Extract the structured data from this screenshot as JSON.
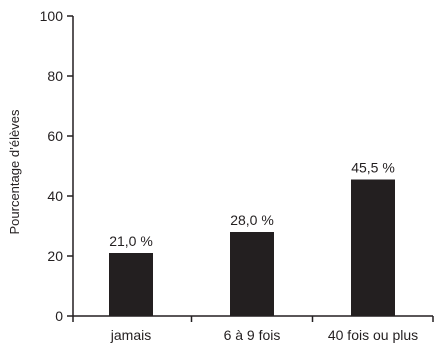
{
  "chart_data": {
    "type": "bar",
    "categories": [
      "jamais",
      "6 à 9 fois",
      "40 fois ou plus"
    ],
    "values": [
      21.0,
      28.0,
      45.5
    ],
    "data_labels": [
      "21,0 %",
      "28,0 %",
      "45,5 %"
    ],
    "title": "",
    "xlabel": "",
    "ylabel": "Pourcentage d’élèves",
    "ylim": [
      0,
      100
    ],
    "yticks": [
      0,
      20,
      40,
      60,
      80,
      100
    ],
    "ytick_labels": [
      "0",
      "20",
      "40",
      "60",
      "80",
      "100"
    ],
    "grid": false,
    "legend": "none",
    "bar_color": "#231f20",
    "axis_color": "#231f20"
  }
}
